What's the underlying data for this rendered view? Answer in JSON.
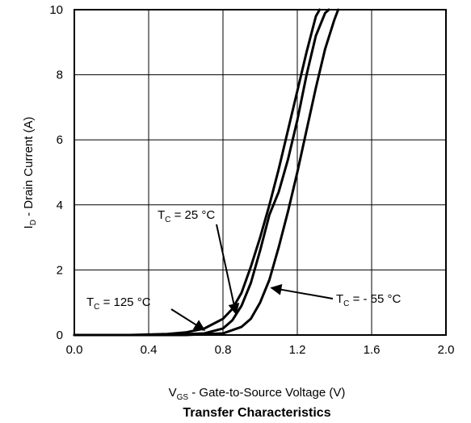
{
  "chart_data": {
    "type": "line",
    "title": "Transfer Characteristics",
    "xlabel": {
      "main": "V",
      "sub": "GS",
      "rest": " - Gate-to-Source Voltage (V)"
    },
    "ylabel": {
      "main": "I",
      "sub": "D",
      "rest": " - Drain Current (A)"
    },
    "xlim": [
      0.0,
      2.0
    ],
    "ylim": [
      0,
      10
    ],
    "xticks": [
      "0.0",
      "0.4",
      "0.8",
      "1.2",
      "1.6",
      "2.0"
    ],
    "yticks": [
      "0",
      "2",
      "4",
      "6",
      "8",
      "10"
    ],
    "grid": true,
    "series": [
      {
        "name": "T_C = 125 °C",
        "x": [
          0.0,
          0.3,
          0.5,
          0.6,
          0.7,
          0.8,
          0.85,
          0.9,
          0.95,
          1.0,
          1.05,
          1.1,
          1.15,
          1.2,
          1.25,
          1.3,
          1.32
        ],
        "y": [
          0.0,
          0.0,
          0.03,
          0.08,
          0.2,
          0.5,
          0.8,
          1.3,
          2.1,
          3.0,
          4.0,
          5.1,
          6.3,
          7.5,
          8.7,
          9.8,
          10.0
        ]
      },
      {
        "name": "T_C = 25 °C",
        "x": [
          0.0,
          0.5,
          0.7,
          0.8,
          0.85,
          0.9,
          0.95,
          1.0,
          1.05,
          1.1,
          1.15,
          1.2,
          1.25,
          1.3,
          1.35,
          1.37
        ],
        "y": [
          0.0,
          0.0,
          0.05,
          0.2,
          0.45,
          0.9,
          1.6,
          2.6,
          3.7,
          4.4,
          5.4,
          6.6,
          8.0,
          9.2,
          9.9,
          10.0
        ]
      },
      {
        "name": "T_C = - 55 °C",
        "x": [
          0.0,
          0.6,
          0.8,
          0.9,
          0.95,
          1.0,
          1.05,
          1.1,
          1.15,
          1.2,
          1.25,
          1.3,
          1.35,
          1.4,
          1.42
        ],
        "y": [
          0.0,
          0.0,
          0.05,
          0.25,
          0.5,
          1.0,
          1.7,
          2.7,
          3.8,
          5.0,
          6.3,
          7.6,
          8.8,
          9.7,
          10.0
        ]
      }
    ],
    "annotations": [
      {
        "main": "T",
        "sub": "C",
        "rest": " = 25 °C",
        "target_series": 1,
        "target": [
          0.87,
          0.65
        ]
      },
      {
        "main": "T",
        "sub": "C",
        "rest": " = 125 °C",
        "target_series": 0,
        "target": [
          0.7,
          0.15
        ]
      },
      {
        "main": "T",
        "sub": "C",
        "rest": " = - 55 °C",
        "target_series": 2,
        "target": [
          1.06,
          1.45
        ]
      }
    ]
  }
}
